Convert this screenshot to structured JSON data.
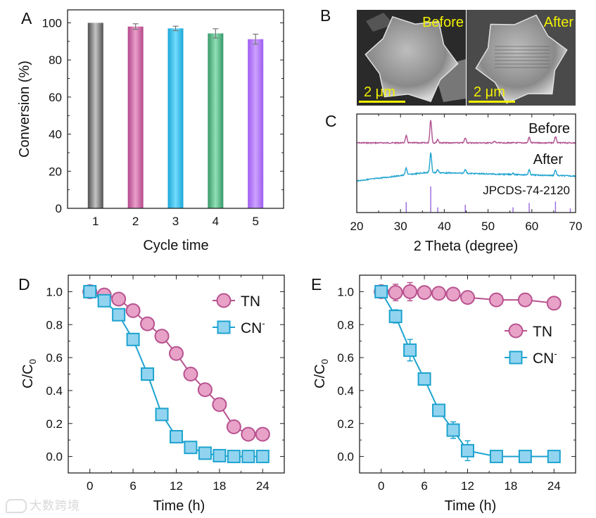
{
  "panel_labels": [
    "A",
    "B",
    "C",
    "D",
    "E"
  ],
  "watermark": "大数跨境",
  "sem": {
    "before_label": "Before",
    "after_label": "After",
    "scale_bar": "2 μm",
    "text_color": "#f2f000"
  },
  "chart_data": [
    {
      "panel": "A",
      "type": "bar",
      "categories": [
        "1",
        "2",
        "3",
        "4",
        "5"
      ],
      "values": [
        100,
        98,
        97,
        94.3,
        91.2
      ],
      "errors": [
        0,
        1.5,
        1.2,
        2.5,
        2.7
      ],
      "xlabel": "Cycle time",
      "ylabel": "Conversion (%)",
      "ylim": [
        0,
        107
      ],
      "yticks": [
        "0",
        "20",
        "40",
        "60",
        "80",
        "100"
      ],
      "colors": [
        [
          "#505050",
          "#c4c4c4"
        ],
        [
          "#b4468a",
          "#e9a0ca"
        ],
        [
          "#1aa6d8",
          "#72dcfc"
        ],
        [
          "#369868",
          "#92e0b6"
        ],
        [
          "#9e5cf0",
          "#cca2ff"
        ]
      ]
    },
    {
      "panel": "C",
      "type": "line",
      "xlabel": "2 Theta (degree)",
      "xlim": [
        20,
        70
      ],
      "xticks": [
        "20",
        "30",
        "40",
        "50",
        "60",
        "70"
      ],
      "series": [
        {
          "name": "Before",
          "color": "#b0508f",
          "peaks": [
            [
              31.3,
              10
            ],
            [
              36.9,
              33
            ],
            [
              38.5,
              5
            ],
            [
              44.8,
              7
            ],
            [
              51.5,
              2
            ],
            [
              59.4,
              8
            ],
            [
              65.4,
              9
            ]
          ]
        },
        {
          "name": "After",
          "color": "#1ea3cf",
          "peaks": [
            [
              31.3,
              10
            ],
            [
              36.9,
              28
            ],
            [
              38.5,
              4
            ],
            [
              44.8,
              6
            ],
            [
              55.7,
              2
            ],
            [
              59.4,
              7
            ],
            [
              65.4,
              8
            ]
          ]
        }
      ],
      "reference": {
        "name": "JPCDS-74-2120",
        "color": "#a070e0",
        "peaks": [
          [
            31.3,
            0.4
          ],
          [
            36.9,
            1.0
          ],
          [
            38.5,
            0.2
          ],
          [
            44.8,
            0.3
          ],
          [
            55.7,
            0.2
          ],
          [
            59.4,
            0.37
          ],
          [
            65.4,
            0.42
          ],
          [
            68.8,
            0.16
          ]
        ]
      }
    },
    {
      "panel": "D",
      "type": "line",
      "xlabel": "Time (h)",
      "ylabel_main": "C/C",
      "ylabel_sub": "0",
      "xlim": [
        -3,
        27
      ],
      "ylim": [
        -0.1,
        1.1
      ],
      "xticks": [
        "0",
        "6",
        "12",
        "18",
        "24"
      ],
      "yticks": [
        "0.0",
        "0.2",
        "0.4",
        "0.6",
        "0.8",
        "1.0"
      ],
      "series": [
        {
          "name": "TN",
          "sup": "",
          "marker": "circle",
          "color": "#b8528f",
          "fill": "#e8a2c8",
          "x": [
            0,
            2,
            4,
            6,
            8,
            10,
            12,
            14,
            16,
            18,
            20,
            22,
            24
          ],
          "y": [
            1.0,
            0.98,
            0.955,
            0.885,
            0.805,
            0.73,
            0.625,
            0.5,
            0.405,
            0.315,
            0.18,
            0.135,
            0.135
          ],
          "err": [
            0,
            0,
            0,
            0,
            0,
            0,
            0,
            0,
            0,
            0,
            0,
            0,
            0
          ]
        },
        {
          "name": "CN",
          "sup": "-",
          "marker": "square",
          "color": "#1ea3cf",
          "fill": "#92d4f0",
          "x": [
            0,
            2,
            4,
            6,
            8,
            10,
            12,
            14,
            16,
            18,
            20,
            22,
            24
          ],
          "y": [
            1.0,
            0.945,
            0.86,
            0.71,
            0.5,
            0.255,
            0.12,
            0.055,
            0.02,
            0.005,
            0,
            0,
            0
          ],
          "err": [
            0,
            0.02,
            0,
            0.02,
            0,
            0.02,
            0.03,
            0.02,
            0,
            0,
            0,
            0,
            0
          ]
        }
      ]
    },
    {
      "panel": "E",
      "type": "line",
      "xlabel": "Time (h)",
      "ylabel_main": "C/C",
      "ylabel_sub": "0",
      "xlim": [
        -3,
        27
      ],
      "ylim": [
        -0.1,
        1.1
      ],
      "xticks": [
        "0",
        "6",
        "12",
        "18",
        "24"
      ],
      "yticks": [
        "0.0",
        "0.2",
        "0.4",
        "0.6",
        "0.8",
        "1.0"
      ],
      "series": [
        {
          "name": "TN",
          "sup": "",
          "marker": "circle",
          "color": "#b8528f",
          "fill": "#e8a2c8",
          "x": [
            0,
            2,
            4,
            6,
            8,
            10,
            12,
            16,
            20,
            24
          ],
          "y": [
            1.0,
            0.995,
            1.0,
            0.995,
            0.99,
            0.985,
            0.965,
            0.95,
            0.95,
            0.93
          ],
          "err": [
            0,
            0.05,
            0.055,
            0.03,
            0.02,
            0.02,
            0.03,
            0,
            0,
            0
          ]
        },
        {
          "name": "CN",
          "sup": "-",
          "marker": "square",
          "color": "#1ea3cf",
          "fill": "#92d4f0",
          "x": [
            0,
            2,
            4,
            6,
            8,
            10,
            12,
            16,
            20,
            24
          ],
          "y": [
            1.0,
            0.85,
            0.645,
            0.47,
            0.28,
            0.16,
            0.035,
            0,
            0,
            0
          ],
          "err": [
            0,
            0.04,
            0.065,
            0,
            0,
            0.05,
            0.06,
            0,
            0,
            0
          ]
        }
      ]
    }
  ]
}
